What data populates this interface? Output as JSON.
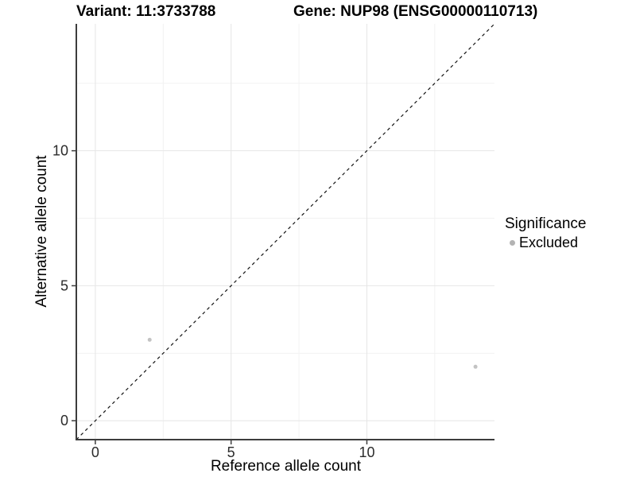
{
  "titles": {
    "left": "Variant: 11:3733788",
    "right": "Gene: NUP98 (ENSG00000110713)"
  },
  "legend": {
    "title": "Significance",
    "items": [
      {
        "label": "Excluded",
        "color": "#b3b3b3"
      }
    ]
  },
  "chart_data": {
    "type": "scatter",
    "title": "Variant: 11:3733788   Gene: NUP98 (ENSG00000110713)",
    "xlabel": "Reference allele count",
    "ylabel": "Alternative allele count",
    "xlim": [
      -0.7,
      14.7
    ],
    "ylim": [
      -0.7,
      14.7
    ],
    "x_ticks": [
      0,
      5,
      10
    ],
    "y_ticks": [
      0,
      5,
      10
    ],
    "x_minor": [
      2.5,
      7.5,
      12.5
    ],
    "y_minor": [
      2.5,
      7.5,
      12.5
    ],
    "grid": true,
    "legend_position": "right",
    "legend_title": "Significance",
    "series": [
      {
        "name": "Excluded",
        "color": "#c3c3c3",
        "point_radius": 2.5,
        "points": [
          [
            2,
            3
          ],
          [
            14,
            2
          ]
        ]
      }
    ],
    "reference_line": {
      "type": "identity",
      "style": "dashed",
      "from": [
        -0.7,
        -0.7
      ],
      "to": [
        14.7,
        14.7
      ]
    },
    "colors": {
      "grid_major": "#e6e6e6",
      "grid_minor": "#f2f2f2",
      "axis": "#3d3d3d",
      "diagonal": "#141414"
    }
  }
}
